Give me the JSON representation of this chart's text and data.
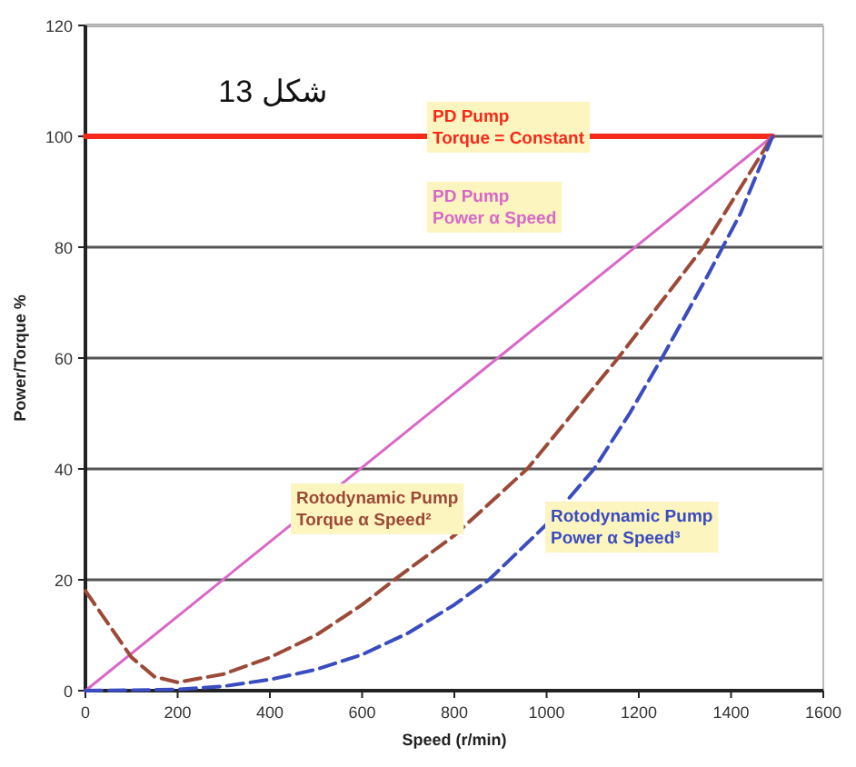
{
  "chart_data": {
    "type": "line",
    "xlabel": "Speed (r/min)",
    "ylabel": "Power/Torque %",
    "annotations": [
      "شكل 13"
    ],
    "xlim": [
      0,
      1600
    ],
    "xticks": [
      0,
      200,
      400,
      600,
      800,
      1000,
      1200,
      1400,
      1600
    ],
    "ylim": [
      0,
      120
    ],
    "yticks": [
      0,
      20,
      40,
      60,
      80,
      100,
      120
    ],
    "grid": "y",
    "marker": "none",
    "series": [
      {
        "name": "PD Pump\nTorque = Constant",
        "color": "#f52a1a",
        "line_style": "solid",
        "x": [
          0,
          1490
        ],
        "values": [
          100,
          100
        ]
      },
      {
        "name": "PD Pump\nPower α Speed",
        "color": "#d868c8",
        "line_style": "solid",
        "x": [
          0,
          1490
        ],
        "values": [
          0,
          100
        ]
      },
      {
        "name": "Rotodynamic Pump\nTorque α Speed²",
        "color": "#9c4a38",
        "line_style": "dashed",
        "x": [
          0,
          50,
          100,
          150,
          200,
          300,
          400,
          500,
          600,
          670,
          800,
          958,
          1155,
          1340,
          1490
        ],
        "values": [
          18,
          12,
          6,
          2.5,
          1.5,
          3,
          6,
          10,
          15.5,
          20,
          28,
          40,
          60,
          80,
          100
        ]
      },
      {
        "name": "Rotodynamic Pump\nPower α Speed³",
        "color": "#3a4cc0",
        "line_style": "dashed",
        "x": [
          0,
          200,
          300,
          400,
          500,
          600,
          700,
          800,
          875,
          1000,
          1103,
          1180,
          1250,
          1350,
          1420,
          1490
        ],
        "values": [
          0,
          0.2,
          0.8,
          2,
          3.8,
          6.5,
          10.4,
          15.5,
          20,
          30,
          40,
          50,
          60,
          75,
          86,
          100
        ]
      }
    ]
  }
}
